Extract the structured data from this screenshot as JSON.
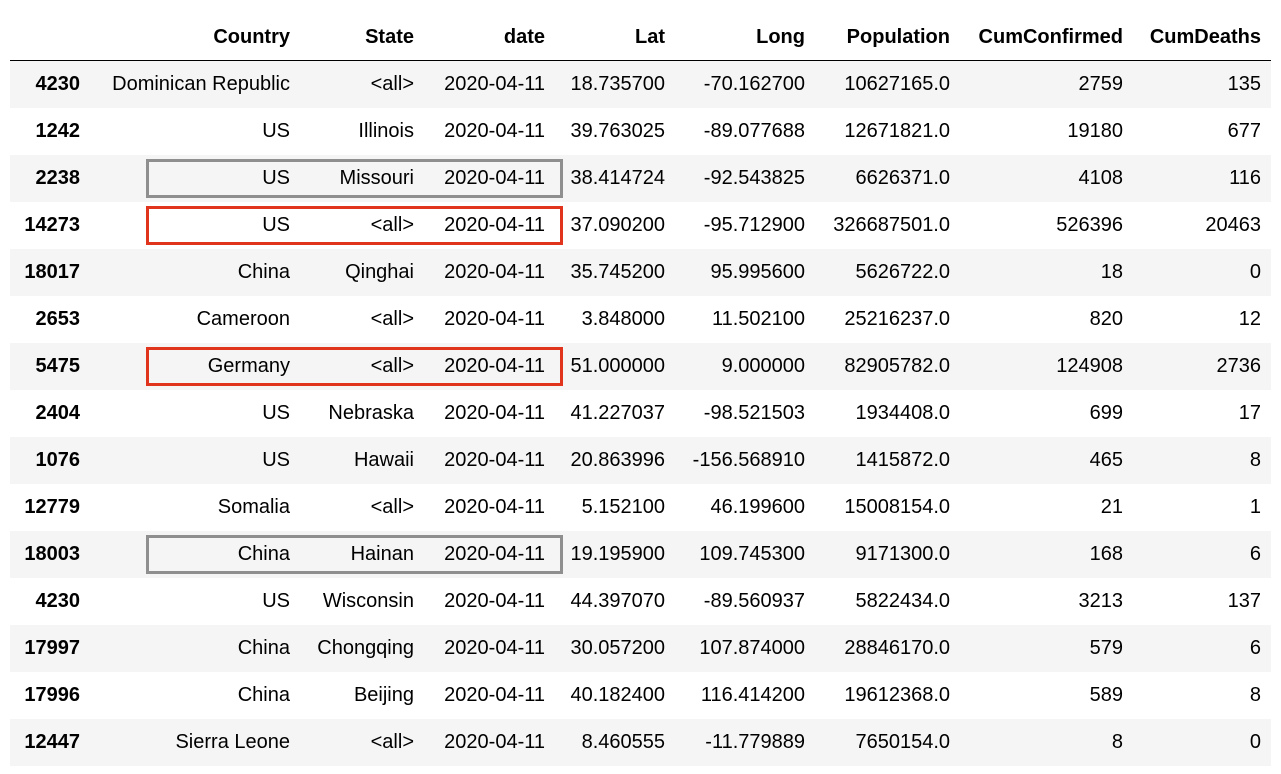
{
  "columns": {
    "index": "",
    "country": "Country",
    "state": "State",
    "date": "date",
    "lat": "Lat",
    "long": "Long",
    "population": "Population",
    "cum_confirmed": "CumConfirmed",
    "cum_deaths": "CumDeaths"
  },
  "rows": [
    {
      "index": "4230",
      "country": "Dominican Republic",
      "state": "<all>",
      "date": "2020-04-11",
      "lat": "18.735700",
      "long": "-70.162700",
      "population": "10627165.0",
      "cum_confirmed": "2759",
      "cum_deaths": "135"
    },
    {
      "index": "1242",
      "country": "US",
      "state": "Illinois",
      "date": "2020-04-11",
      "lat": "39.763025",
      "long": "-89.077688",
      "population": "12671821.0",
      "cum_confirmed": "19180",
      "cum_deaths": "677"
    },
    {
      "index": "2238",
      "country": "US",
      "state": "Missouri",
      "date": "2020-04-11",
      "lat": "38.414724",
      "long": "-92.543825",
      "population": "6626371.0",
      "cum_confirmed": "4108",
      "cum_deaths": "116"
    },
    {
      "index": "14273",
      "country": "US",
      "state": "<all>",
      "date": "2020-04-11",
      "lat": "37.090200",
      "long": "-95.712900",
      "population": "326687501.0",
      "cum_confirmed": "526396",
      "cum_deaths": "20463"
    },
    {
      "index": "18017",
      "country": "China",
      "state": "Qinghai",
      "date": "2020-04-11",
      "lat": "35.745200",
      "long": "95.995600",
      "population": "5626722.0",
      "cum_confirmed": "18",
      "cum_deaths": "0"
    },
    {
      "index": "2653",
      "country": "Cameroon",
      "state": "<all>",
      "date": "2020-04-11",
      "lat": "3.848000",
      "long": "11.502100",
      "population": "25216237.0",
      "cum_confirmed": "820",
      "cum_deaths": "12"
    },
    {
      "index": "5475",
      "country": "Germany",
      "state": "<all>",
      "date": "2020-04-11",
      "lat": "51.000000",
      "long": "9.000000",
      "population": "82905782.0",
      "cum_confirmed": "124908",
      "cum_deaths": "2736"
    },
    {
      "index": "2404",
      "country": "US",
      "state": "Nebraska",
      "date": "2020-04-11",
      "lat": "41.227037",
      "long": "-98.521503",
      "population": "1934408.0",
      "cum_confirmed": "699",
      "cum_deaths": "17"
    },
    {
      "index": "1076",
      "country": "US",
      "state": "Hawaii",
      "date": "2020-04-11",
      "lat": "20.863996",
      "long": "-156.568910",
      "population": "1415872.0",
      "cum_confirmed": "465",
      "cum_deaths": "8"
    },
    {
      "index": "12779",
      "country": "Somalia",
      "state": "<all>",
      "date": "2020-04-11",
      "lat": "5.152100",
      "long": "46.199600",
      "population": "15008154.0",
      "cum_confirmed": "21",
      "cum_deaths": "1"
    },
    {
      "index": "18003",
      "country": "China",
      "state": "Hainan",
      "date": "2020-04-11",
      "lat": "19.195900",
      "long": "109.745300",
      "population": "9171300.0",
      "cum_confirmed": "168",
      "cum_deaths": "6"
    },
    {
      "index": "4230",
      "country": "US",
      "state": "Wisconsin",
      "date": "2020-04-11",
      "lat": "44.397070",
      "long": "-89.560937",
      "population": "5822434.0",
      "cum_confirmed": "3213",
      "cum_deaths": "137"
    },
    {
      "index": "17997",
      "country": "China",
      "state": "Chongqing",
      "date": "2020-04-11",
      "lat": "30.057200",
      "long": "107.874000",
      "population": "28846170.0",
      "cum_confirmed": "579",
      "cum_deaths": "6"
    },
    {
      "index": "17996",
      "country": "China",
      "state": "Beijing",
      "date": "2020-04-11",
      "lat": "40.182400",
      "long": "116.414200",
      "population": "19612368.0",
      "cum_confirmed": "589",
      "cum_deaths": "8"
    },
    {
      "index": "12447",
      "country": "Sierra Leone",
      "state": "<all>",
      "date": "2020-04-11",
      "lat": "8.460555",
      "long": "-11.779889",
      "population": "7650154.0",
      "cum_confirmed": "8",
      "cum_deaths": "0"
    }
  ],
  "highlights": [
    {
      "row": 2,
      "color": "#8f8f8f"
    },
    {
      "row": 3,
      "color": "#e0341c"
    },
    {
      "row": 6,
      "color": "#e0341c"
    },
    {
      "row": 10,
      "color": "#8f8f8f"
    }
  ]
}
